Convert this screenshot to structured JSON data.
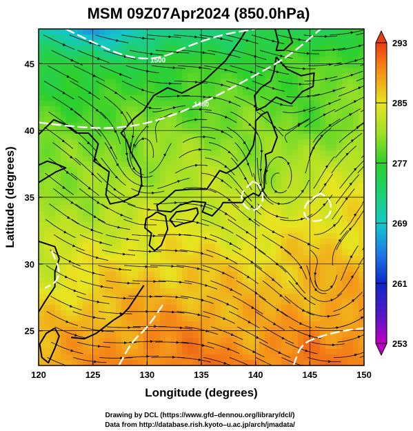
{
  "title": "MSM 09Z07Apr2024 (850.0hPa)",
  "xlabel": "Longitude (degrees)",
  "ylabel": "Latitude  (degrees)",
  "credit_line1": "Drawing by DCL (https://www.gfd–dennou.org/library/dcl/)",
  "credit_line2": "Data from http://database.rish.kyoto–u.ac.jp/arch/jmadata/",
  "chart_data": {
    "type": "map",
    "xlim": [
      120,
      150
    ],
    "ylim": [
      22.4,
      47.6
    ],
    "x_ticks": [
      "120",
      "125",
      "130",
      "135",
      "140",
      "145",
      "150"
    ],
    "y_ticks": [
      "25",
      "30",
      "35",
      "40",
      "45"
    ],
    "grid": true,
    "contour_labels": [
      "1500",
      "1480"
    ],
    "colorbar": {
      "min": 253,
      "max": 293,
      "tick_labels": [
        "293",
        "285",
        "277",
        "269",
        "261",
        "253"
      ],
      "stops": [
        {
          "t": 253,
          "color": "#c000c0"
        },
        {
          "t": 257,
          "color": "#5018c8"
        },
        {
          "t": 261,
          "color": "#0c28c8"
        },
        {
          "t": 265,
          "color": "#1c7ce8"
        },
        {
          "t": 269,
          "color": "#14c8c8"
        },
        {
          "t": 273,
          "color": "#1cd070"
        },
        {
          "t": 277,
          "color": "#2fd02a"
        },
        {
          "t": 281,
          "color": "#9fe026"
        },
        {
          "t": 285,
          "color": "#e8e420"
        },
        {
          "t": 289,
          "color": "#f59418"
        },
        {
          "t": 293,
          "color": "#ea3c14"
        }
      ]
    },
    "temperature_field": [
      {
        "lat": 47.5,
        "lons": [
          120,
          125,
          130,
          135,
          140,
          145,
          150
        ],
        "vals": [
          270,
          267,
          270,
          273,
          274,
          275,
          276
        ]
      },
      {
        "lat": 45,
        "lons": [
          120,
          125,
          130,
          135,
          140,
          145,
          150
        ],
        "vals": [
          276,
          275,
          276,
          277,
          277,
          278,
          279
        ]
      },
      {
        "lat": 40,
        "lons": [
          120,
          125,
          130,
          135,
          140,
          145,
          150
        ],
        "vals": [
          279,
          279,
          280,
          280,
          280,
          279,
          281
        ]
      },
      {
        "lat": 35,
        "lons": [
          120,
          125,
          130,
          135,
          140,
          145,
          150
        ],
        "vals": [
          281,
          281,
          282,
          283,
          282,
          284,
          285
        ]
      },
      {
        "lat": 30,
        "lons": [
          120,
          125,
          130,
          135,
          140,
          145,
          150
        ],
        "vals": [
          283,
          285,
          286,
          286,
          286,
          287,
          287
        ]
      },
      {
        "lat": 25,
        "lons": [
          120,
          125,
          130,
          135,
          140,
          145,
          150
        ],
        "vals": [
          287,
          288,
          289,
          289,
          288,
          289,
          289
        ]
      },
      {
        "lat": 22.5,
        "lons": [
          120,
          125,
          130,
          135,
          140,
          145,
          150
        ],
        "vals": [
          288,
          289,
          290,
          290,
          290,
          290,
          290
        ]
      }
    ],
    "geopotential_contours": [
      {
        "label": "1500",
        "points": [
          [
            122.5,
            47.6
          ],
          [
            125,
            46.6
          ],
          [
            128,
            45.5
          ],
          [
            131,
            45.3
          ],
          [
            134,
            46.4
          ],
          [
            137,
            47.2
          ],
          [
            140,
            47.6
          ]
        ]
      },
      {
        "label": "1480",
        "points": [
          [
            120,
            40.6
          ],
          [
            123,
            40.3
          ],
          [
            127,
            40.1
          ],
          [
            131,
            40.7
          ],
          [
            135,
            42.0
          ],
          [
            139,
            43.7
          ],
          [
            143,
            45.5
          ],
          [
            146,
            47.6
          ]
        ]
      },
      {
        "label": "",
        "points": [
          [
            139.8,
            36.2
          ],
          [
            138.6,
            35.3
          ],
          [
            138.9,
            34.3
          ],
          [
            140.0,
            33.9
          ],
          [
            140.8,
            34.8
          ],
          [
            140.4,
            35.9
          ],
          [
            139.8,
            36.2
          ]
        ]
      },
      {
        "label": "",
        "points": [
          [
            146,
            35.3
          ],
          [
            144.6,
            34.6
          ],
          [
            144.4,
            33.5
          ],
          [
            145.7,
            33.1
          ],
          [
            147,
            33.7
          ],
          [
            146.9,
            34.8
          ],
          [
            146,
            35.3
          ]
        ]
      },
      {
        "label": "",
        "points": [
          [
            121.2,
            31.0
          ],
          [
            122.0,
            29.5
          ],
          [
            121.6,
            28.6
          ],
          [
            120.6,
            28.2
          ]
        ]
      },
      {
        "label": "",
        "points": [
          [
            143.5,
            22.4
          ],
          [
            144.2,
            24.0
          ],
          [
            146.0,
            24.6
          ],
          [
            148.0,
            25.0
          ],
          [
            150,
            25.2
          ]
        ]
      },
      {
        "label": "",
        "points": [
          [
            127.4,
            22.4
          ],
          [
            128.6,
            24.2
          ],
          [
            130.0,
            25.2
          ],
          [
            131.5,
            27.0
          ]
        ]
      }
    ],
    "coastlines": [
      {
        "name": "korea",
        "points": [
          [
            124.6,
            39.8
          ],
          [
            125.5,
            39.0
          ],
          [
            125.1,
            37.7
          ],
          [
            126.5,
            36.9
          ],
          [
            126.2,
            35.2
          ],
          [
            126.6,
            34.5
          ],
          [
            127.8,
            34.7
          ],
          [
            129.2,
            35.2
          ],
          [
            129.5,
            36.0
          ],
          [
            129.4,
            37.1
          ],
          [
            128.5,
            38.4
          ],
          [
            128.1,
            39.3
          ],
          [
            127.6,
            39.8
          ],
          [
            128.8,
            40.9
          ],
          [
            129.7,
            41.5
          ],
          [
            130.6,
            42.6
          ]
        ]
      },
      {
        "name": "china-coast",
        "points": [
          [
            120.0,
            39.7
          ],
          [
            121.4,
            40.8
          ],
          [
            122.3,
            40.5
          ],
          [
            123.5,
            39.8
          ],
          [
            124.6,
            39.8
          ]
        ]
      },
      {
        "name": "shandong",
        "points": [
          [
            120.0,
            36.1
          ],
          [
            120.6,
            36.4
          ],
          [
            121.6,
            36.9
          ],
          [
            122.5,
            37.2
          ],
          [
            121.6,
            37.5
          ],
          [
            120.8,
            37.7
          ],
          [
            120.0,
            37.4
          ]
        ]
      },
      {
        "name": "china-south",
        "points": [
          [
            120.0,
            31.7
          ],
          [
            121.5,
            31.3
          ],
          [
            121.9,
            30.4
          ],
          [
            121.5,
            29.4
          ],
          [
            121.5,
            28.3
          ],
          [
            120.6,
            27.2
          ],
          [
            120.0,
            26.4
          ]
        ]
      },
      {
        "name": "taiwan",
        "points": [
          [
            121.5,
            25.2
          ],
          [
            121.9,
            24.6
          ],
          [
            121.5,
            23.7
          ],
          [
            120.9,
            22.6
          ],
          [
            120.3,
            23.0
          ],
          [
            120.1,
            24.0
          ],
          [
            120.7,
            24.8
          ],
          [
            121.5,
            25.2
          ]
        ]
      },
      {
        "name": "russia-coast",
        "points": [
          [
            130.6,
            42.6
          ],
          [
            131.9,
            43.2
          ],
          [
            133.2,
            42.8
          ],
          [
            135.1,
            43.6
          ],
          [
            137.2,
            45.2
          ],
          [
            138.6,
            46.8
          ],
          [
            139.2,
            47.6
          ]
        ]
      },
      {
        "name": "sakhalin",
        "points": [
          [
            141.8,
            47.6
          ],
          [
            142.1,
            46.6
          ],
          [
            141.9,
            46.0
          ],
          [
            142.6,
            46.0
          ],
          [
            143.4,
            46.6
          ],
          [
            143.0,
            47.6
          ]
        ]
      },
      {
        "name": "hokkaido",
        "points": [
          [
            141.9,
            45.5
          ],
          [
            142.9,
            44.6
          ],
          [
            144.2,
            44.1
          ],
          [
            145.4,
            44.3
          ],
          [
            145.3,
            43.3
          ],
          [
            144.3,
            42.9
          ],
          [
            143.3,
            42.0
          ],
          [
            141.9,
            42.5
          ],
          [
            140.9,
            41.8
          ],
          [
            140.1,
            41.5
          ],
          [
            139.9,
            42.6
          ],
          [
            140.5,
            43.2
          ],
          [
            141.4,
            43.7
          ],
          [
            141.7,
            44.4
          ],
          [
            141.9,
            45.5
          ]
        ]
      },
      {
        "name": "honshu",
        "points": [
          [
            141.1,
            41.4
          ],
          [
            141.5,
            40.6
          ],
          [
            142.0,
            39.5
          ],
          [
            141.5,
            38.4
          ],
          [
            140.9,
            38.2
          ],
          [
            141.0,
            37.4
          ],
          [
            140.8,
            36.6
          ],
          [
            140.8,
            35.7
          ],
          [
            140.3,
            35.1
          ],
          [
            139.8,
            35.3
          ],
          [
            139.0,
            34.9
          ],
          [
            138.8,
            34.6
          ],
          [
            137.9,
            34.6
          ],
          [
            137.0,
            34.6
          ],
          [
            136.8,
            34.3
          ],
          [
            136.0,
            33.6
          ],
          [
            135.1,
            33.9
          ],
          [
            135.4,
            34.6
          ],
          [
            134.2,
            34.7
          ],
          [
            133.0,
            34.4
          ],
          [
            132.2,
            33.9
          ],
          [
            131.0,
            34.0
          ],
          [
            130.9,
            34.4
          ],
          [
            131.5,
            34.7
          ],
          [
            132.6,
            35.5
          ],
          [
            134.0,
            35.6
          ],
          [
            135.5,
            35.6
          ],
          [
            136.1,
            36.3
          ],
          [
            136.7,
            37.0
          ],
          [
            137.3,
            36.8
          ],
          [
            138.2,
            37.2
          ],
          [
            139.2,
            38.0
          ],
          [
            139.8,
            38.9
          ],
          [
            140.0,
            39.9
          ],
          [
            140.0,
            40.7
          ],
          [
            140.6,
            41.2
          ],
          [
            141.1,
            41.4
          ]
        ]
      },
      {
        "name": "shikoku",
        "points": [
          [
            134.6,
            34.2
          ],
          [
            134.7,
            33.8
          ],
          [
            134.2,
            33.2
          ],
          [
            133.2,
            33.0
          ],
          [
            132.6,
            32.8
          ],
          [
            132.1,
            33.3
          ],
          [
            132.7,
            33.9
          ],
          [
            133.6,
            34.0
          ],
          [
            134.6,
            34.2
          ]
        ]
      },
      {
        "name": "kyushu",
        "points": [
          [
            130.9,
            33.9
          ],
          [
            131.7,
            33.6
          ],
          [
            131.9,
            32.6
          ],
          [
            131.3,
            31.4
          ],
          [
            130.7,
            31.0
          ],
          [
            130.2,
            31.4
          ],
          [
            130.4,
            32.3
          ],
          [
            129.8,
            32.7
          ],
          [
            129.9,
            33.4
          ],
          [
            130.4,
            33.6
          ],
          [
            130.9,
            33.9
          ]
        ]
      },
      {
        "name": "ryukyu",
        "points": [
          [
            129.7,
            28.4
          ],
          [
            128.3,
            26.7
          ],
          [
            127.7,
            26.2
          ],
          [
            126.9,
            25.8
          ],
          [
            125.3,
            24.8
          ],
          [
            124.2,
            24.4
          ],
          [
            123.0,
            24.5
          ]
        ]
      }
    ],
    "vortices": [
      {
        "lon": 142.1,
        "lat": 36.0
      },
      {
        "lon": 146.2,
        "lat": 28.5
      },
      {
        "lon": 129.6,
        "lat": 37.6
      }
    ]
  }
}
